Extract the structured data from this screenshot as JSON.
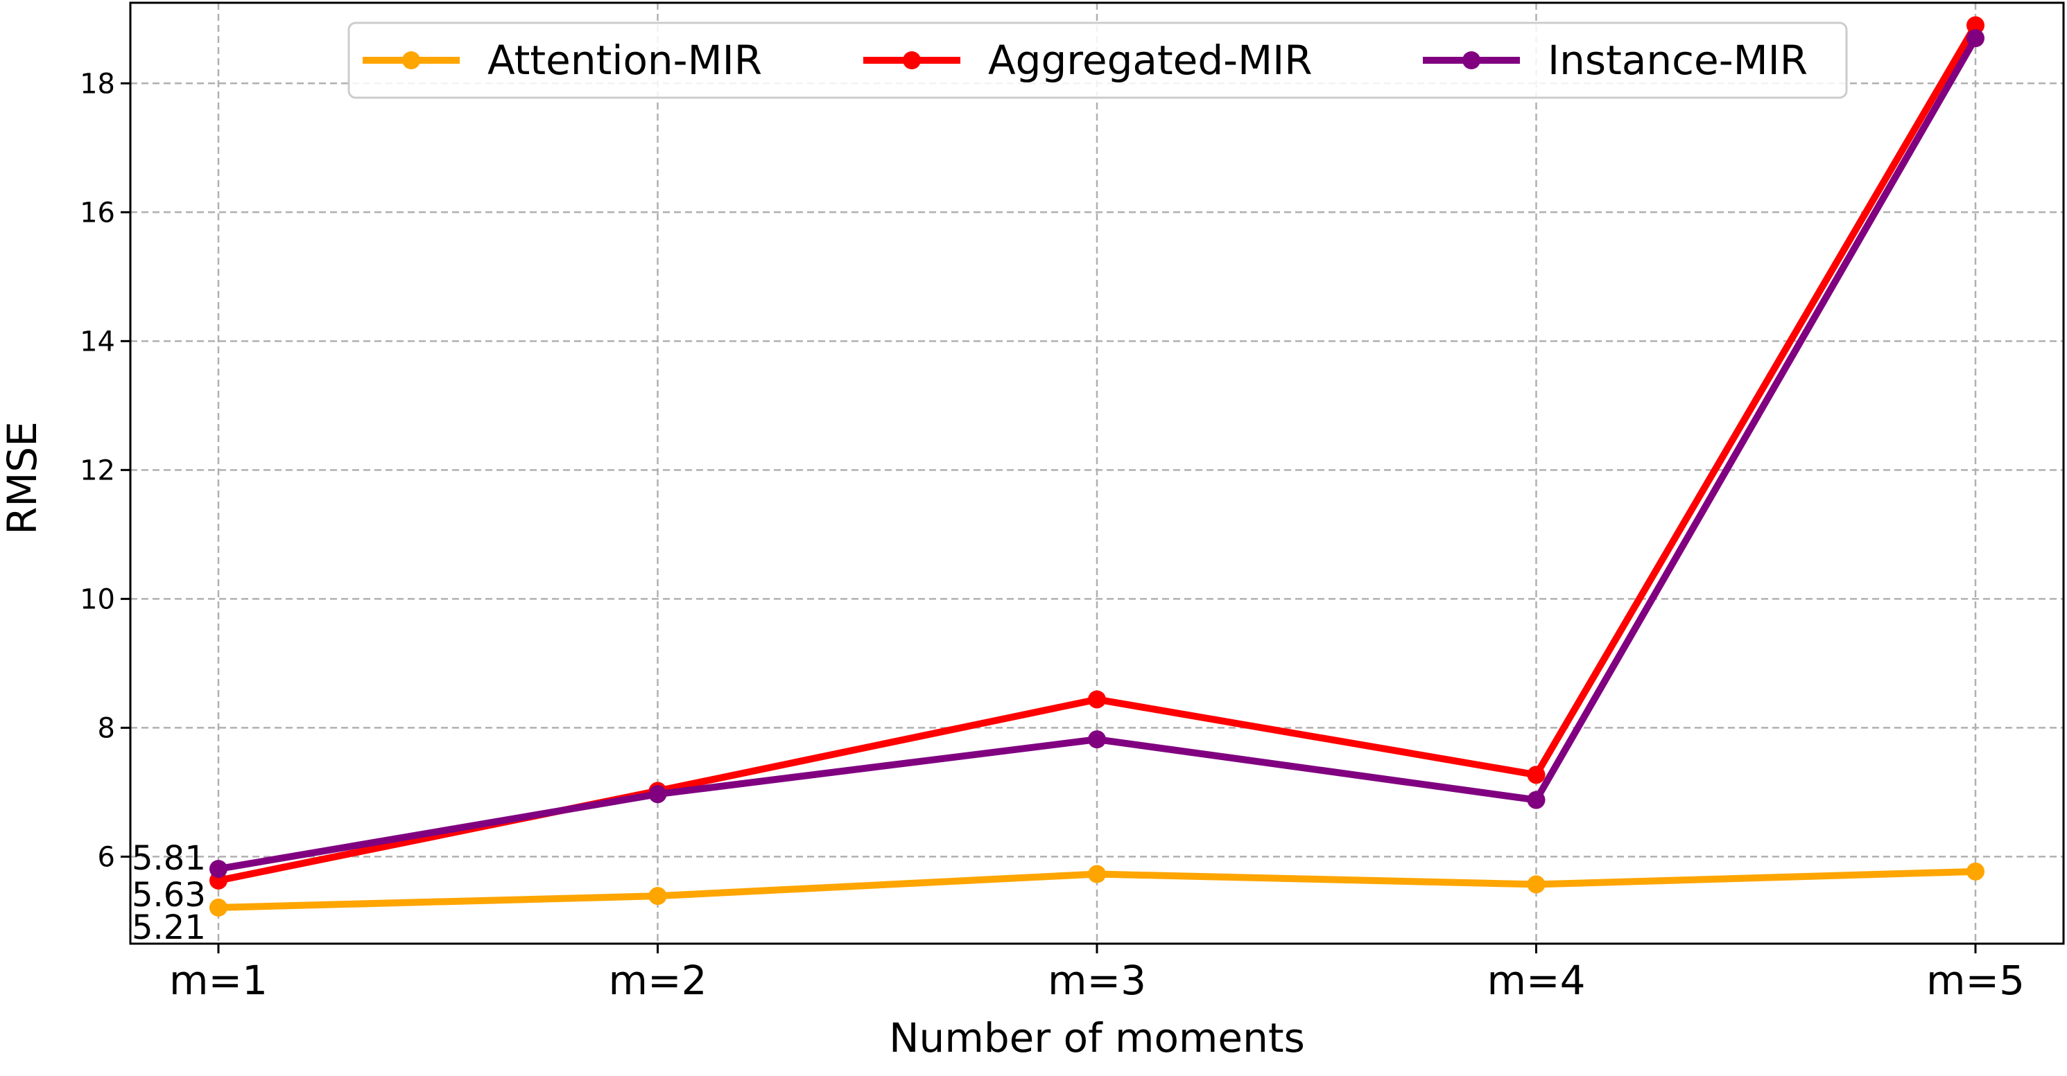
{
  "chart_data": {
    "type": "line",
    "categories": [
      "m=1",
      "m=2",
      "m=3",
      "m=4",
      "m=5"
    ],
    "series": [
      {
        "name": "Attention-MIR",
        "color": "#ffa500",
        "values": [
          5.21,
          5.39,
          5.73,
          5.57,
          5.77
        ]
      },
      {
        "name": "Aggregated-MIR",
        "color": "#ff0000",
        "values": [
          5.63,
          7.02,
          8.44,
          7.27,
          18.9
        ]
      },
      {
        "name": "Instance-MIR",
        "color": "#800080",
        "values": [
          5.81,
          6.97,
          7.82,
          6.88,
          18.7
        ]
      }
    ],
    "annotations": [
      "5.81",
      "5.63",
      "5.21"
    ],
    "xlabel": "Number of moments",
    "ylabel": "RMSE",
    "ylim": [
      4.65,
      19.25
    ],
    "yticks": [
      6,
      8,
      10,
      12,
      14,
      16,
      18
    ],
    "grid": true,
    "legend_position": "top-center"
  }
}
